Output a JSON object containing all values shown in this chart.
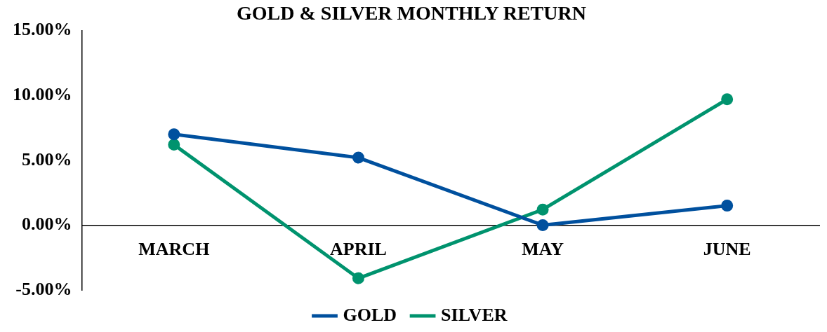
{
  "chart_data": {
    "type": "line",
    "title": "GOLD & SILVER MONTHLY RETURN",
    "categories": [
      "MARCH",
      "APRIL",
      "MAY",
      "JUNE"
    ],
    "series": [
      {
        "name": "GOLD",
        "color": "#00509e",
        "values": [
          7.0,
          5.2,
          0,
          1.5
        ]
      },
      {
        "name": "SILVER",
        "color": "#00936e",
        "values": [
          6.2,
          -4.1,
          1.2,
          9.7
        ]
      }
    ],
    "ylim": [
      -5,
      15
    ],
    "yticks": [
      {
        "value": -5,
        "label": "-5.00%"
      },
      {
        "value": 0,
        "label": "0.00%"
      },
      {
        "value": 5,
        "label": "5.00%"
      },
      {
        "value": 10,
        "label": "10.00%"
      },
      {
        "value": 15,
        "label": "15.00%"
      }
    ],
    "grid": false,
    "legend": "bottom",
    "marker": "circle"
  }
}
